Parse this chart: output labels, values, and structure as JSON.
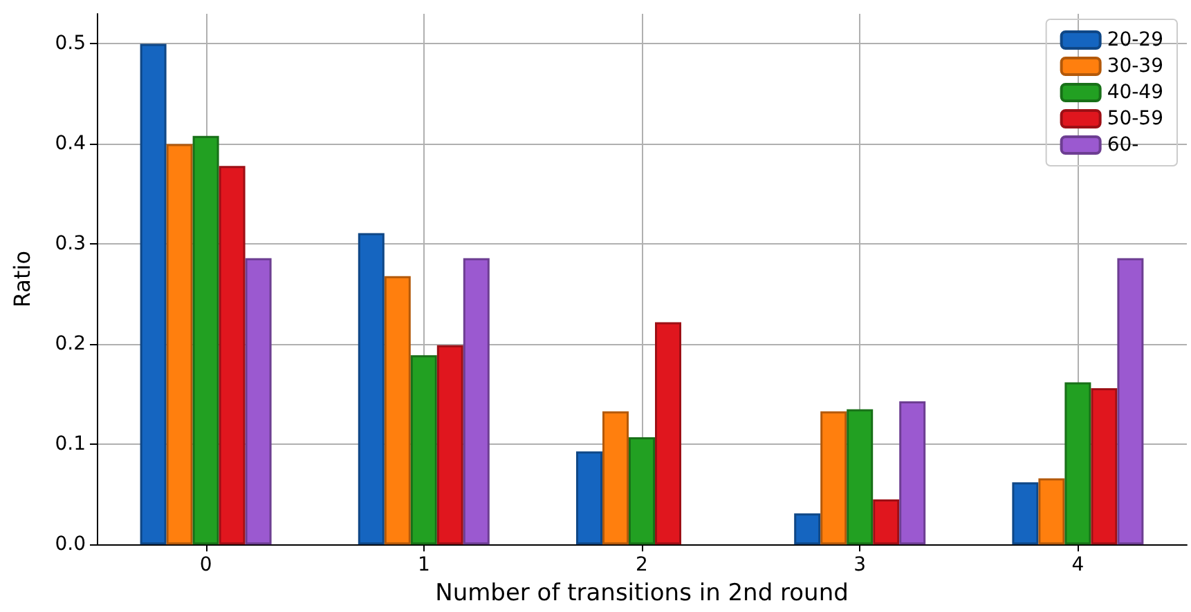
{
  "chart_data": {
    "type": "bar",
    "xlabel": "Number of transitions in 2nd round",
    "ylabel": "Ratio",
    "categories": [
      "0",
      "1",
      "2",
      "3",
      "4"
    ],
    "series": [
      {
        "name": "20-29",
        "color": "#1565c0",
        "values": [
          0.5,
          0.311,
          0.093,
          0.031,
          0.062
        ]
      },
      {
        "name": "30-39",
        "color": "#ff7f0e",
        "values": [
          0.4,
          0.268,
          0.133,
          0.133,
          0.066
        ]
      },
      {
        "name": "40-49",
        "color": "#22a022",
        "values": [
          0.408,
          0.189,
          0.107,
          0.135,
          0.162
        ]
      },
      {
        "name": "50-59",
        "color": "#e0161e",
        "values": [
          0.378,
          0.199,
          0.222,
          0.045,
          0.156
        ]
      },
      {
        "name": "60-",
        "color": "#9b59d0",
        "values": [
          0.286,
          0.286,
          0,
          0.143,
          0.286
        ]
      }
    ],
    "ylim": [
      0,
      0.53
    ],
    "yticks": [
      {
        "value": 0,
        "label": "0.0"
      },
      {
        "value": 0.1,
        "label": "0.1"
      },
      {
        "value": 0.2,
        "label": "0.2"
      },
      {
        "value": 0.3,
        "label": "0.3"
      },
      {
        "value": 0.4,
        "label": "0.4"
      },
      {
        "value": 0.5,
        "label": "0.5"
      }
    ],
    "grid": true,
    "legend": "top right"
  }
}
